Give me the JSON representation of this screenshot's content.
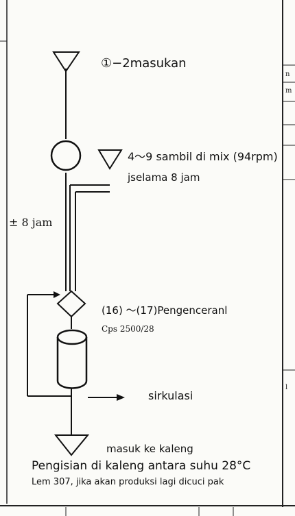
{
  "step_intake": "①−2masukan",
  "step_mix": "4〜9 sambil di mix (94rpm)",
  "step_mix_duration": "jselama 8 jam",
  "duration_side": "± 8 jam",
  "step_dilution": "(16) 〜(17)Pengenceranl",
  "viscosity": "Cps 2500/28",
  "circulation": "sirkulasi",
  "step_can": "masuk ke kaleng",
  "note_filling": "Pengisian di kaleng antara suhu 28°C",
  "note_cleaning": "Lem 307, jika akan produksi lagi dicuci pak",
  "side_n": "n",
  "side_m": "m",
  "side_l": "l",
  "colors": {
    "ink": "#111111",
    "paper": "#fbfbf8",
    "handwriting": "#6a3a7a"
  }
}
